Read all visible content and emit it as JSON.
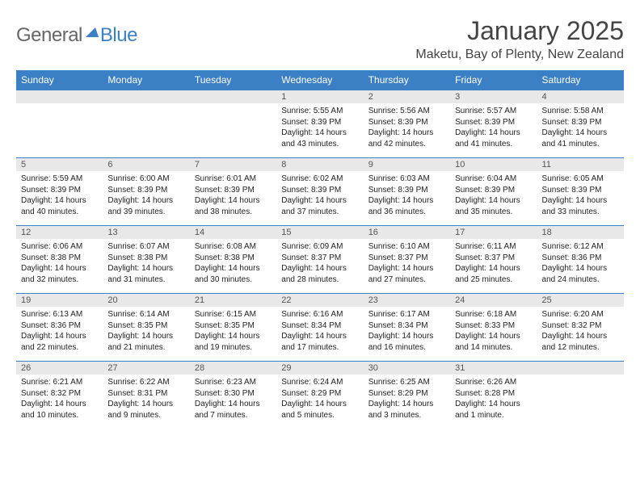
{
  "logo": {
    "text_general": "General",
    "text_blue": "Blue",
    "icon_color": "#3b7fc4"
  },
  "title": "January 2025",
  "location": "Maketu, Bay of Plenty, New Zealand",
  "colors": {
    "header_bg": "#3b7fc4",
    "header_text": "#ffffff",
    "daynum_bg": "#e8e8e8",
    "daynum_border": "#3b7fc4"
  },
  "day_headers": [
    "Sunday",
    "Monday",
    "Tuesday",
    "Wednesday",
    "Thursday",
    "Friday",
    "Saturday"
  ],
  "weeks": [
    [
      null,
      null,
      null,
      {
        "n": "1",
        "sr": "Sunrise: 5:55 AM",
        "ss": "Sunset: 8:39 PM",
        "d1": "Daylight: 14 hours",
        "d2": "and 43 minutes."
      },
      {
        "n": "2",
        "sr": "Sunrise: 5:56 AM",
        "ss": "Sunset: 8:39 PM",
        "d1": "Daylight: 14 hours",
        "d2": "and 42 minutes."
      },
      {
        "n": "3",
        "sr": "Sunrise: 5:57 AM",
        "ss": "Sunset: 8:39 PM",
        "d1": "Daylight: 14 hours",
        "d2": "and 41 minutes."
      },
      {
        "n": "4",
        "sr": "Sunrise: 5:58 AM",
        "ss": "Sunset: 8:39 PM",
        "d1": "Daylight: 14 hours",
        "d2": "and 41 minutes."
      }
    ],
    [
      {
        "n": "5",
        "sr": "Sunrise: 5:59 AM",
        "ss": "Sunset: 8:39 PM",
        "d1": "Daylight: 14 hours",
        "d2": "and 40 minutes."
      },
      {
        "n": "6",
        "sr": "Sunrise: 6:00 AM",
        "ss": "Sunset: 8:39 PM",
        "d1": "Daylight: 14 hours",
        "d2": "and 39 minutes."
      },
      {
        "n": "7",
        "sr": "Sunrise: 6:01 AM",
        "ss": "Sunset: 8:39 PM",
        "d1": "Daylight: 14 hours",
        "d2": "and 38 minutes."
      },
      {
        "n": "8",
        "sr": "Sunrise: 6:02 AM",
        "ss": "Sunset: 8:39 PM",
        "d1": "Daylight: 14 hours",
        "d2": "and 37 minutes."
      },
      {
        "n": "9",
        "sr": "Sunrise: 6:03 AM",
        "ss": "Sunset: 8:39 PM",
        "d1": "Daylight: 14 hours",
        "d2": "and 36 minutes."
      },
      {
        "n": "10",
        "sr": "Sunrise: 6:04 AM",
        "ss": "Sunset: 8:39 PM",
        "d1": "Daylight: 14 hours",
        "d2": "and 35 minutes."
      },
      {
        "n": "11",
        "sr": "Sunrise: 6:05 AM",
        "ss": "Sunset: 8:39 PM",
        "d1": "Daylight: 14 hours",
        "d2": "and 33 minutes."
      }
    ],
    [
      {
        "n": "12",
        "sr": "Sunrise: 6:06 AM",
        "ss": "Sunset: 8:38 PM",
        "d1": "Daylight: 14 hours",
        "d2": "and 32 minutes."
      },
      {
        "n": "13",
        "sr": "Sunrise: 6:07 AM",
        "ss": "Sunset: 8:38 PM",
        "d1": "Daylight: 14 hours",
        "d2": "and 31 minutes."
      },
      {
        "n": "14",
        "sr": "Sunrise: 6:08 AM",
        "ss": "Sunset: 8:38 PM",
        "d1": "Daylight: 14 hours",
        "d2": "and 30 minutes."
      },
      {
        "n": "15",
        "sr": "Sunrise: 6:09 AM",
        "ss": "Sunset: 8:37 PM",
        "d1": "Daylight: 14 hours",
        "d2": "and 28 minutes."
      },
      {
        "n": "16",
        "sr": "Sunrise: 6:10 AM",
        "ss": "Sunset: 8:37 PM",
        "d1": "Daylight: 14 hours",
        "d2": "and 27 minutes."
      },
      {
        "n": "17",
        "sr": "Sunrise: 6:11 AM",
        "ss": "Sunset: 8:37 PM",
        "d1": "Daylight: 14 hours",
        "d2": "and 25 minutes."
      },
      {
        "n": "18",
        "sr": "Sunrise: 6:12 AM",
        "ss": "Sunset: 8:36 PM",
        "d1": "Daylight: 14 hours",
        "d2": "and 24 minutes."
      }
    ],
    [
      {
        "n": "19",
        "sr": "Sunrise: 6:13 AM",
        "ss": "Sunset: 8:36 PM",
        "d1": "Daylight: 14 hours",
        "d2": "and 22 minutes."
      },
      {
        "n": "20",
        "sr": "Sunrise: 6:14 AM",
        "ss": "Sunset: 8:35 PM",
        "d1": "Daylight: 14 hours",
        "d2": "and 21 minutes."
      },
      {
        "n": "21",
        "sr": "Sunrise: 6:15 AM",
        "ss": "Sunset: 8:35 PM",
        "d1": "Daylight: 14 hours",
        "d2": "and 19 minutes."
      },
      {
        "n": "22",
        "sr": "Sunrise: 6:16 AM",
        "ss": "Sunset: 8:34 PM",
        "d1": "Daylight: 14 hours",
        "d2": "and 17 minutes."
      },
      {
        "n": "23",
        "sr": "Sunrise: 6:17 AM",
        "ss": "Sunset: 8:34 PM",
        "d1": "Daylight: 14 hours",
        "d2": "and 16 minutes."
      },
      {
        "n": "24",
        "sr": "Sunrise: 6:18 AM",
        "ss": "Sunset: 8:33 PM",
        "d1": "Daylight: 14 hours",
        "d2": "and 14 minutes."
      },
      {
        "n": "25",
        "sr": "Sunrise: 6:20 AM",
        "ss": "Sunset: 8:32 PM",
        "d1": "Daylight: 14 hours",
        "d2": "and 12 minutes."
      }
    ],
    [
      {
        "n": "26",
        "sr": "Sunrise: 6:21 AM",
        "ss": "Sunset: 8:32 PM",
        "d1": "Daylight: 14 hours",
        "d2": "and 10 minutes."
      },
      {
        "n": "27",
        "sr": "Sunrise: 6:22 AM",
        "ss": "Sunset: 8:31 PM",
        "d1": "Daylight: 14 hours",
        "d2": "and 9 minutes."
      },
      {
        "n": "28",
        "sr": "Sunrise: 6:23 AM",
        "ss": "Sunset: 8:30 PM",
        "d1": "Daylight: 14 hours",
        "d2": "and 7 minutes."
      },
      {
        "n": "29",
        "sr": "Sunrise: 6:24 AM",
        "ss": "Sunset: 8:29 PM",
        "d1": "Daylight: 14 hours",
        "d2": "and 5 minutes."
      },
      {
        "n": "30",
        "sr": "Sunrise: 6:25 AM",
        "ss": "Sunset: 8:29 PM",
        "d1": "Daylight: 14 hours",
        "d2": "and 3 minutes."
      },
      {
        "n": "31",
        "sr": "Sunrise: 6:26 AM",
        "ss": "Sunset: 8:28 PM",
        "d1": "Daylight: 14 hours",
        "d2": "and 1 minute."
      },
      null
    ]
  ]
}
